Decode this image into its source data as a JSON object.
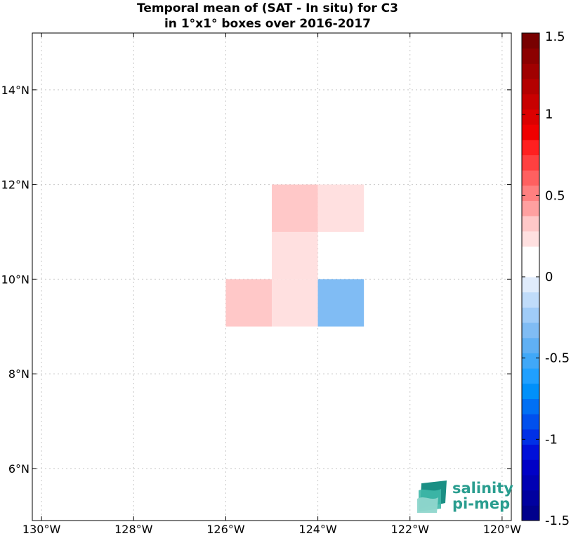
{
  "chart_data": {
    "type": "heatmap",
    "title_lines": [
      "Temporal mean of (SAT - In situ) for C3",
      "in 1°x1° boxes over 2016-2017"
    ],
    "xlim": [
      -130.2,
      -119.8
    ],
    "ylim": [
      4.9,
      15.2
    ],
    "x_ticks": [
      {
        "value": -130,
        "label": "130°W"
      },
      {
        "value": -128,
        "label": "128°W"
      },
      {
        "value": -126,
        "label": "126°W"
      },
      {
        "value": -124,
        "label": "124°W"
      },
      {
        "value": -122,
        "label": "122°W"
      },
      {
        "value": -120,
        "label": "120°W"
      }
    ],
    "y_ticks": [
      {
        "value": 6,
        "label": "6°N"
      },
      {
        "value": 8,
        "label": "8°N"
      },
      {
        "value": 10,
        "label": "10°N"
      },
      {
        "value": 12,
        "label": "12°N"
      },
      {
        "value": 14,
        "label": "14°N"
      }
    ],
    "grid": true,
    "cells": [
      {
        "lon": -125,
        "lat": 11,
        "value": 0.35
      },
      {
        "lon": -124,
        "lat": 11,
        "value": 0.2
      },
      {
        "lon": -125,
        "lat": 10,
        "value": 0.2
      },
      {
        "lon": -126,
        "lat": 9,
        "value": 0.35
      },
      {
        "lon": -125,
        "lat": 9,
        "value": 0.2
      },
      {
        "lon": -124,
        "lat": 9,
        "value": -0.3
      }
    ],
    "colorbar": {
      "min": -1.5,
      "max": 1.5,
      "step": 0.1,
      "ticks": [
        {
          "value": 1.5,
          "label": "1.5"
        },
        {
          "value": 1,
          "label": "1"
        },
        {
          "value": 0.5,
          "label": "0.5"
        },
        {
          "value": 0,
          "label": "0"
        },
        {
          "value": -0.5,
          "label": "-0.5"
        },
        {
          "value": -1,
          "label": "-1"
        },
        {
          "value": -1.5,
          "label": "-1.5"
        }
      ],
      "colors": [
        "#00008c",
        "#00009f",
        "#0000b3",
        "#0000c6",
        "#0010d9",
        "#0030e6",
        "#0050ee",
        "#0070f4",
        "#0090fa",
        "#20a0ff",
        "#40a8f8",
        "#60b0f4",
        "#80bcf4",
        "#a0ccf8",
        "#c0dcfa",
        "#e0ecfc",
        "#ffffff",
        "#ffffff",
        "#ffe0e0",
        "#ffc8c8",
        "#ffa0a0",
        "#ff8080",
        "#ff6060",
        "#ff4040",
        "#ff2020",
        "#f00000",
        "#dc0000",
        "#c80000",
        "#b40000",
        "#a00000",
        "#8c0000",
        "#780000"
      ]
    }
  },
  "logo": {
    "line1": "salinity",
    "line2": "pi-mep",
    "color": "#2a9d8f"
  }
}
